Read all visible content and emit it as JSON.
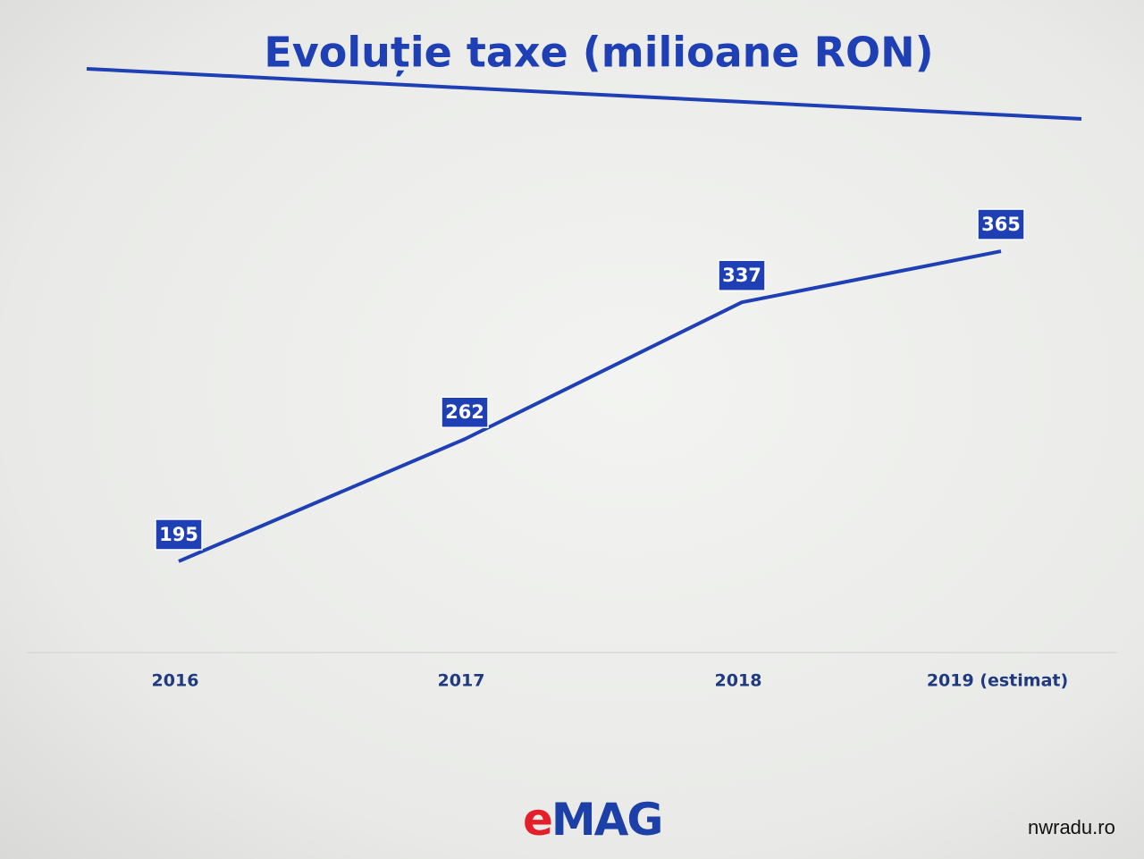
{
  "chart_data": {
    "type": "line",
    "title": "Evoluție taxe (milioane RON)",
    "categories": [
      "2016",
      "2017",
      "2018",
      "2019 (estimat)"
    ],
    "values": [
      195,
      262,
      337,
      365
    ],
    "color": "#1f3fb5",
    "ylim": [
      145,
      440
    ]
  },
  "logo": "eMAG",
  "watermark": "nwradu.ro"
}
